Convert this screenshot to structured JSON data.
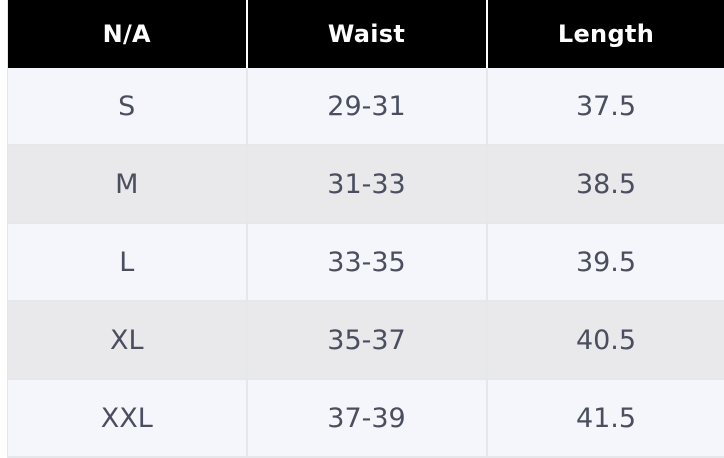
{
  "table": {
    "headers": [
      "N/A",
      "Waist",
      "Length"
    ],
    "rows": [
      [
        "S",
        "29-31",
        "37.5"
      ],
      [
        "M",
        "31-33",
        "38.5"
      ],
      [
        "L",
        "33-35",
        "39.5"
      ],
      [
        "XL",
        "35-37",
        "40.5"
      ],
      [
        "XXL",
        "37-39",
        "41.5"
      ]
    ]
  },
  "colors": {
    "header_bg": "#000000",
    "header_text": "#ffffff",
    "row_odd_bg": "#f4f6fb",
    "row_even_bg": "#e9e8ea",
    "cell_text": "#4a4e5e"
  }
}
